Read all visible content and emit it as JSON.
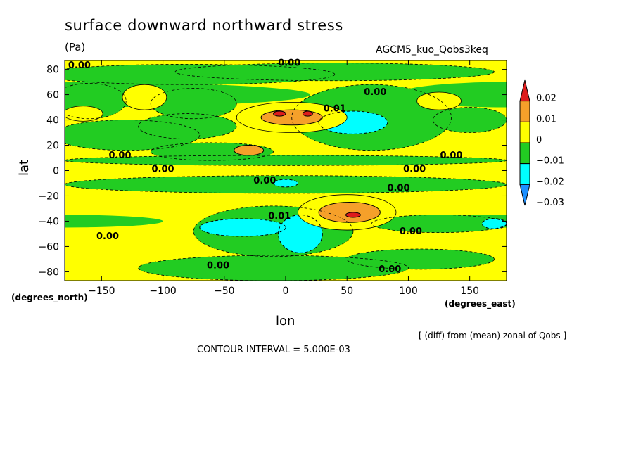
{
  "chart_data": {
    "type": "heatmap",
    "title": "surface downward northward stress",
    "units": "(Pa)",
    "dataset": "AGCM5_kuo_Qobs3keq",
    "xlabel": "lon",
    "ylabel": "lat",
    "x_unit_label": "(degrees_east)",
    "y_unit_label": "(degrees_north)",
    "note": "[ (diff) from (mean) zonal of Qobs ]",
    "contour_interval": "CONTOUR INTERVAL = 5.000E-03",
    "xlim": [
      -180,
      180
    ],
    "ylim": [
      -87,
      87
    ],
    "x_ticks": [
      -150,
      -100,
      -50,
      0,
      50,
      100,
      150
    ],
    "y_ticks": [
      80,
      60,
      40,
      20,
      0,
      -20,
      -40,
      -60,
      -80
    ],
    "colorbar": {
      "levels": [
        "0.02",
        "0.01",
        "0",
        "−0.01",
        "−0.02",
        "−0.03"
      ],
      "colors": [
        "#dd1c1c",
        "#f5a02a",
        "#ffff00",
        "#22cc22",
        "#00ffff",
        "#1e90ff"
      ],
      "extend": "both"
    },
    "base_color": "#ffff00",
    "features": [
      {
        "sign": "neg",
        "level": -0.005,
        "lon": -80,
        "lat": 76,
        "rlon": 120,
        "rlat": 8
      },
      {
        "sign": "neg",
        "level": -0.005,
        "lon": 40,
        "lat": 78,
        "rlon": 130,
        "rlat": 7
      },
      {
        "sign": "neg",
        "level": -0.005,
        "lon": -160,
        "lat": 55,
        "rlon": 30,
        "rlat": 14
      },
      {
        "sign": "neg",
        "level": -0.005,
        "lon": -75,
        "lat": 53,
        "rlon": 35,
        "rlat": 12
      },
      {
        "sign": "neg",
        "level": -0.005,
        "lon": -130,
        "lat": 28,
        "rlon": 60,
        "rlat": 12
      },
      {
        "sign": "neg",
        "level": -0.005,
        "lon": -80,
        "lat": 35,
        "rlon": 40,
        "rlat": 10
      },
      {
        "sign": "neg",
        "level": -0.005,
        "lon": 70,
        "lat": 42,
        "rlon": 65,
        "rlat": 26
      },
      {
        "sign": "neg",
        "level": -0.015,
        "lon": 55,
        "lat": 38,
        "rlon": 28,
        "rlat": 9
      },
      {
        "sign": "neg",
        "level": -0.005,
        "lon": 150,
        "lat": 40,
        "rlon": 30,
        "rlat": 10
      },
      {
        "sign": "neg",
        "level": -0.005,
        "lon": -60,
        "lat": 15,
        "rlon": 50,
        "rlat": 7
      },
      {
        "sign": "neg",
        "level": -0.005,
        "lon": 0,
        "lat": 8,
        "rlon": 180,
        "rlat": 4
      },
      {
        "sign": "neg",
        "level": -0.005,
        "lon": 0,
        "lat": -11,
        "rlon": 180,
        "rlat": 7
      },
      {
        "sign": "neg",
        "level": -0.015,
        "lon": 0,
        "lat": -10,
        "rlon": 10,
        "rlat": 3
      },
      {
        "sign": "neg",
        "level": -0.005,
        "lon": -10,
        "lat": -48,
        "rlon": 65,
        "rlat": 20
      },
      {
        "sign": "neg",
        "level": -0.015,
        "lon": -35,
        "lat": -45,
        "rlon": 35,
        "rlat": 7
      },
      {
        "sign": "neg",
        "level": -0.015,
        "lon": 12,
        "lat": -50,
        "rlon": 18,
        "rlat": 15
      },
      {
        "sign": "neg",
        "level": -0.005,
        "lon": 125,
        "lat": -42,
        "rlon": 55,
        "rlat": 7
      },
      {
        "sign": "neg",
        "level": -0.015,
        "lon": 170,
        "lat": -42,
        "rlon": 10,
        "rlat": 4
      },
      {
        "sign": "neg",
        "level": -0.005,
        "lon": -10,
        "lat": -77,
        "rlon": 110,
        "rlat": 10
      },
      {
        "sign": "neg",
        "level": -0.005,
        "lon": 110,
        "lat": -70,
        "rlon": 60,
        "rlat": 8
      },
      {
        "sign": "pos",
        "level": 0.005,
        "lon": -115,
        "lat": 58,
        "rlon": 18,
        "rlat": 10
      },
      {
        "sign": "pos",
        "level": 0.005,
        "lon": -165,
        "lat": 45,
        "rlon": 16,
        "rlat": 6
      },
      {
        "sign": "pos",
        "level": 0.005,
        "lon": 125,
        "lat": 55,
        "rlon": 18,
        "rlat": 7
      },
      {
        "sign": "pos",
        "level": 0.005,
        "lon": 5,
        "lat": 42,
        "rlon": 45,
        "rlat": 12
      },
      {
        "sign": "pos",
        "level": 0.015,
        "lon": 5,
        "lat": 42,
        "rlon": 25,
        "rlat": 6
      },
      {
        "sign": "pos",
        "level": 0.025,
        "lon": -5,
        "lat": 45,
        "rlon": 5,
        "rlat": 2
      },
      {
        "sign": "pos",
        "level": 0.025,
        "lon": 18,
        "lat": 45,
        "rlon": 4,
        "rlat": 2
      },
      {
        "sign": "pos",
        "level": 0.015,
        "lon": -30,
        "lat": 16,
        "rlon": 12,
        "rlat": 4
      },
      {
        "sign": "pos",
        "level": 0.005,
        "lon": 50,
        "lat": -33,
        "rlon": 40,
        "rlat": 14
      },
      {
        "sign": "pos",
        "level": 0.015,
        "lon": 52,
        "lat": -33,
        "rlon": 25,
        "rlat": 8
      },
      {
        "sign": "pos",
        "level": 0.025,
        "lon": 55,
        "lat": -35,
        "rlon": 6,
        "rlat": 2
      }
    ],
    "zero_bands": [
      {
        "lon": -180,
        "lat": 60,
        "rlon": 200,
        "rlat": 10
      },
      {
        "lon": 180,
        "lat": 60,
        "rlon": 90,
        "rlat": 10
      },
      {
        "lon": -180,
        "lat": -40,
        "rlon": 80,
        "rlat": 5
      },
      {
        "lon": 180,
        "lat": -40,
        "rlon": 80,
        "rlat": 5
      }
    ],
    "contour_labels": [
      {
        "text": "0.00",
        "lon": -168,
        "lat": 83
      },
      {
        "text": "0.00",
        "lon": 3,
        "lat": 85
      },
      {
        "text": "0.00",
        "lon": 73,
        "lat": 62
      },
      {
        "text": "0.01",
        "lon": 40,
        "lat": 49
      },
      {
        "text": "0.00",
        "lon": -135,
        "lat": 12
      },
      {
        "text": "0.00",
        "lon": 135,
        "lat": 12
      },
      {
        "text": "0.00",
        "lon": -100,
        "lat": 1
      },
      {
        "text": "0.00",
        "lon": 105,
        "lat": 1
      },
      {
        "text": "0.00",
        "lon": -17,
        "lat": -8
      },
      {
        "text": "0.00",
        "lon": 92,
        "lat": -14
      },
      {
        "text": "0.01",
        "lon": -5,
        "lat": -36
      },
      {
        "text": "0.00",
        "lon": 102,
        "lat": -48
      },
      {
        "text": "0.00",
        "lon": -145,
        "lat": -52
      },
      {
        "text": "0.00",
        "lon": -55,
        "lat": -75
      },
      {
        "text": "0.00",
        "lon": 85,
        "lat": -78
      }
    ]
  }
}
